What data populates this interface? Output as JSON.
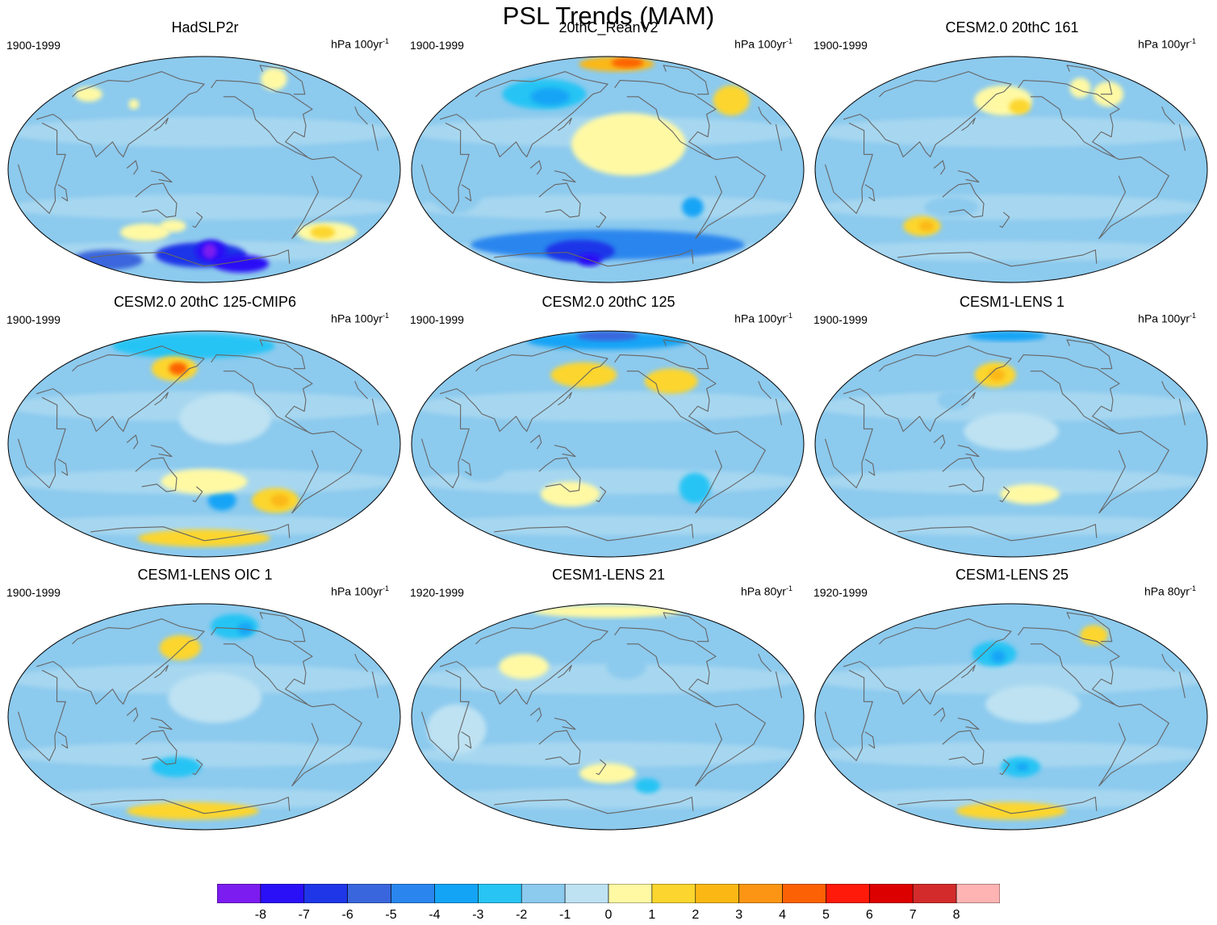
{
  "figure": {
    "title": "PSL Trends (MAM)"
  },
  "panels": [
    {
      "title": "HadSLP2r",
      "period": "1900-1999",
      "units": "hPa 100yr",
      "units_exp": "-1",
      "blobs": [
        {
          "lon": 175,
          "lat": -68,
          "rx": 70,
          "ry": 10,
          "level": -6
        },
        {
          "lon": 190,
          "lat": -65,
          "rx": 22,
          "ry": 9,
          "level": -7
        },
        {
          "lon": 188,
          "lat": -65,
          "rx": 10,
          "ry": 6,
          "level": -8
        },
        {
          "lon": 245,
          "lat": -75,
          "rx": 50,
          "ry": 7,
          "level": -7
        },
        {
          "lon": 20,
          "lat": -72,
          "rx": 60,
          "ry": 8,
          "level": -5
        },
        {
          "lon": 110,
          "lat": -50,
          "rx": 28,
          "ry": 7,
          "level": 1
        },
        {
          "lon": 145,
          "lat": -45,
          "rx": 14,
          "ry": 5,
          "level": 1
        },
        {
          "lon": 325,
          "lat": -50,
          "rx": 34,
          "ry": 8,
          "level": 1
        },
        {
          "lon": 320,
          "lat": -50,
          "rx": 14,
          "ry": 5,
          "level": 2
        },
        {
          "lon": 95,
          "lat": 52,
          "rx": 6,
          "ry": 4,
          "level": 1
        },
        {
          "lon": 295,
          "lat": 72,
          "rx": 22,
          "ry": 9,
          "level": 1
        },
        {
          "lon": 25,
          "lat": 60,
          "rx": 18,
          "ry": 6,
          "level": 1
        },
        {
          "lon": 230,
          "lat": 65,
          "rx": 18,
          "ry": 7,
          "level": -1
        }
      ]
    },
    {
      "title": "20thC_ReanV2",
      "period": "1900-1999",
      "units": "hPa 100yr",
      "units_exp": "-1",
      "blobs": [
        {
          "lon": 200,
          "lat": 84,
          "rx": 90,
          "ry": 6,
          "level": 3
        },
        {
          "lon": 225,
          "lat": 85,
          "rx": 40,
          "ry": 4,
          "level": 5
        },
        {
          "lon": 95,
          "lat": 60,
          "rx": 55,
          "ry": 12,
          "level": -2
        },
        {
          "lon": 105,
          "lat": 58,
          "rx": 25,
          "ry": 7,
          "level": -3
        },
        {
          "lon": 200,
          "lat": 20,
          "rx": 50,
          "ry": 25,
          "level": 1
        },
        {
          "lon": 335,
          "lat": 55,
          "rx": 22,
          "ry": 12,
          "level": 2
        },
        {
          "lon": 180,
          "lat": -60,
          "rx": 180,
          "ry": 12,
          "level": -4
        },
        {
          "lon": 140,
          "lat": -65,
          "rx": 50,
          "ry": 9,
          "level": -6
        },
        {
          "lon": 150,
          "lat": -72,
          "rx": 20,
          "ry": 5,
          "level": -7
        },
        {
          "lon": 40,
          "lat": -10,
          "rx": 25,
          "ry": 25,
          "level": -1
        },
        {
          "lon": 265,
          "lat": -30,
          "rx": 10,
          "ry": 8,
          "level": -3
        }
      ]
    },
    {
      "title": "CESM2.0 20thC 161",
      "period": "1900-1999",
      "units": "hPa 100yr",
      "units_exp": "-1",
      "blobs": [
        {
          "lon": 170,
          "lat": 55,
          "rx": 35,
          "ry": 12,
          "level": 1
        },
        {
          "lon": 190,
          "lat": 50,
          "rx": 12,
          "ry": 6,
          "level": 2
        },
        {
          "lon": 80,
          "lat": -45,
          "rx": 20,
          "ry": 8,
          "level": 2
        },
        {
          "lon": 85,
          "lat": -45,
          "rx": 8,
          "ry": 4,
          "level": 3
        },
        {
          "lon": 120,
          "lat": -30,
          "rx": 25,
          "ry": 8,
          "level": -1
        },
        {
          "lon": 280,
          "lat": 65,
          "rx": 15,
          "ry": 8,
          "level": 1
        },
        {
          "lon": 310,
          "lat": 60,
          "rx": 20,
          "ry": 10,
          "level": 1
        }
      ]
    },
    {
      "title": "CESM2.0 20thC 125-CMIP6",
      "period": "1900-1999",
      "units": "hPa 100yr",
      "units_exp": "-1",
      "blobs": [
        {
          "lon": 160,
          "lat": 78,
          "rx": 160,
          "ry": 10,
          "level": -2
        },
        {
          "lon": 140,
          "lat": 60,
          "rx": 30,
          "ry": 10,
          "level": 2
        },
        {
          "lon": 145,
          "lat": 60,
          "rx": 12,
          "ry": 5,
          "level": 5
        },
        {
          "lon": 200,
          "lat": -45,
          "rx": 15,
          "ry": 8,
          "level": -3
        },
        {
          "lon": 260,
          "lat": -45,
          "rx": 25,
          "ry": 10,
          "level": 2
        },
        {
          "lon": 265,
          "lat": -45,
          "rx": 10,
          "ry": 5,
          "level": 3
        },
        {
          "lon": 180,
          "lat": -30,
          "rx": 40,
          "ry": 10,
          "level": 1
        },
        {
          "lon": 180,
          "lat": -75,
          "rx": 120,
          "ry": 7,
          "level": 2
        },
        {
          "lon": 200,
          "lat": 20,
          "rx": 40,
          "ry": 20,
          "level": 0
        }
      ]
    },
    {
      "title": "CESM2.0 20thC 125",
      "period": "1900-1999",
      "units": "hPa 100yr",
      "units_exp": "-1",
      "blobs": [
        {
          "lon": 180,
          "lat": 82,
          "rx": 180,
          "ry": 7,
          "level": -3
        },
        {
          "lon": 180,
          "lat": 86,
          "rx": 80,
          "ry": 4,
          "level": -5
        },
        {
          "lon": 150,
          "lat": 55,
          "rx": 40,
          "ry": 10,
          "level": 2
        },
        {
          "lon": 255,
          "lat": 50,
          "rx": 30,
          "ry": 10,
          "level": 2
        },
        {
          "lon": 140,
          "lat": -40,
          "rx": 30,
          "ry": 10,
          "level": 1
        },
        {
          "lon": 270,
          "lat": -35,
          "rx": 15,
          "ry": 12,
          "level": -2
        },
        {
          "lon": 60,
          "lat": -20,
          "rx": 20,
          "ry": 10,
          "level": -1
        }
      ]
    },
    {
      "title": "CESM1-LENS 1",
      "period": "1900-1999",
      "units": "hPa 100yr",
      "units_exp": "-1",
      "blobs": [
        {
          "lon": 160,
          "lat": 55,
          "rx": 25,
          "ry": 10,
          "level": 2
        },
        {
          "lon": 162,
          "lat": 55,
          "rx": 10,
          "ry": 5,
          "level": 3
        },
        {
          "lon": 170,
          "lat": 86,
          "rx": 100,
          "ry": 4,
          "level": -3
        },
        {
          "lon": 120,
          "lat": 35,
          "rx": 15,
          "ry": 8,
          "level": -1
        },
        {
          "lon": 200,
          "lat": -40,
          "rx": 30,
          "ry": 8,
          "level": 1
        },
        {
          "lon": 180,
          "lat": 10,
          "rx": 40,
          "ry": 15,
          "level": 0
        }
      ]
    },
    {
      "title": "CESM1-LENS OIC 1",
      "period": "1900-1999",
      "units": "hPa 100yr",
      "units_exp": "-1",
      "blobs": [
        {
          "lon": 150,
          "lat": 55,
          "rx": 25,
          "ry": 10,
          "level": 2
        },
        {
          "lon": 230,
          "lat": 72,
          "rx": 40,
          "ry": 10,
          "level": -2
        },
        {
          "lon": 245,
          "lat": 70,
          "rx": 12,
          "ry": 5,
          "level": -3
        },
        {
          "lon": 160,
          "lat": -75,
          "rx": 120,
          "ry": 7,
          "level": 2
        },
        {
          "lon": 150,
          "lat": -40,
          "rx": 25,
          "ry": 8,
          "level": -2
        },
        {
          "lon": 190,
          "lat": 15,
          "rx": 40,
          "ry": 20,
          "level": 0
        }
      ]
    },
    {
      "title": "CESM1-LENS 21",
      "period": "1920-1999",
      "units": "hPa 80yr",
      "units_exp": "-1",
      "blobs": [
        {
          "lon": 180,
          "lat": 84,
          "rx": 180,
          "ry": 5,
          "level": 1
        },
        {
          "lon": 90,
          "lat": 40,
          "rx": 25,
          "ry": 10,
          "level": 1
        },
        {
          "lon": 200,
          "lat": 40,
          "rx": 20,
          "ry": 10,
          "level": -1
        },
        {
          "lon": 180,
          "lat": -45,
          "rx": 30,
          "ry": 8,
          "level": 1
        },
        {
          "lon": 230,
          "lat": -55,
          "rx": 15,
          "ry": 6,
          "level": -2
        },
        {
          "lon": 40,
          "lat": -10,
          "rx": 25,
          "ry": 20,
          "level": 0
        }
      ]
    },
    {
      "title": "CESM1-LENS 25",
      "period": "1920-1999",
      "units": "hPa 80yr",
      "units_exp": "-1",
      "blobs": [
        {
          "lon": 160,
          "lat": 50,
          "rx": 25,
          "ry": 10,
          "level": -2
        },
        {
          "lon": 165,
          "lat": 48,
          "rx": 8,
          "ry": 5,
          "level": -3
        },
        {
          "lon": 190,
          "lat": -40,
          "rx": 20,
          "ry": 8,
          "level": -2
        },
        {
          "lon": 192,
          "lat": -40,
          "rx": 6,
          "ry": 3,
          "level": -3
        },
        {
          "lon": 300,
          "lat": 65,
          "rx": 20,
          "ry": 8,
          "level": 2
        },
        {
          "lon": 180,
          "lat": -75,
          "rx": 100,
          "ry": 7,
          "level": 2
        },
        {
          "lon": 200,
          "lat": 10,
          "rx": 40,
          "ry": 15,
          "level": 0
        }
      ]
    }
  ],
  "colorbar": {
    "ticks": [
      "-8",
      "-7",
      "-6",
      "-5",
      "-4",
      "-3",
      "-2",
      "-1",
      "0",
      "1",
      "2",
      "3",
      "4",
      "5",
      "6",
      "7",
      "8"
    ],
    "colors": [
      "#7C1CF0",
      "#2A10F6",
      "#1E36E8",
      "#3A66DD",
      "#2A86EE",
      "#14A4F6",
      "#28C4F4",
      "#8CCAEE",
      "#BEE2F2",
      "#FFF9A4",
      "#FCD62E",
      "#FBB814",
      "#FC9514",
      "#FC6205",
      "#FF1A0A",
      "#DD0000",
      "#D32B2B",
      "#FFB4B4"
    ]
  },
  "land_color": "#666666"
}
